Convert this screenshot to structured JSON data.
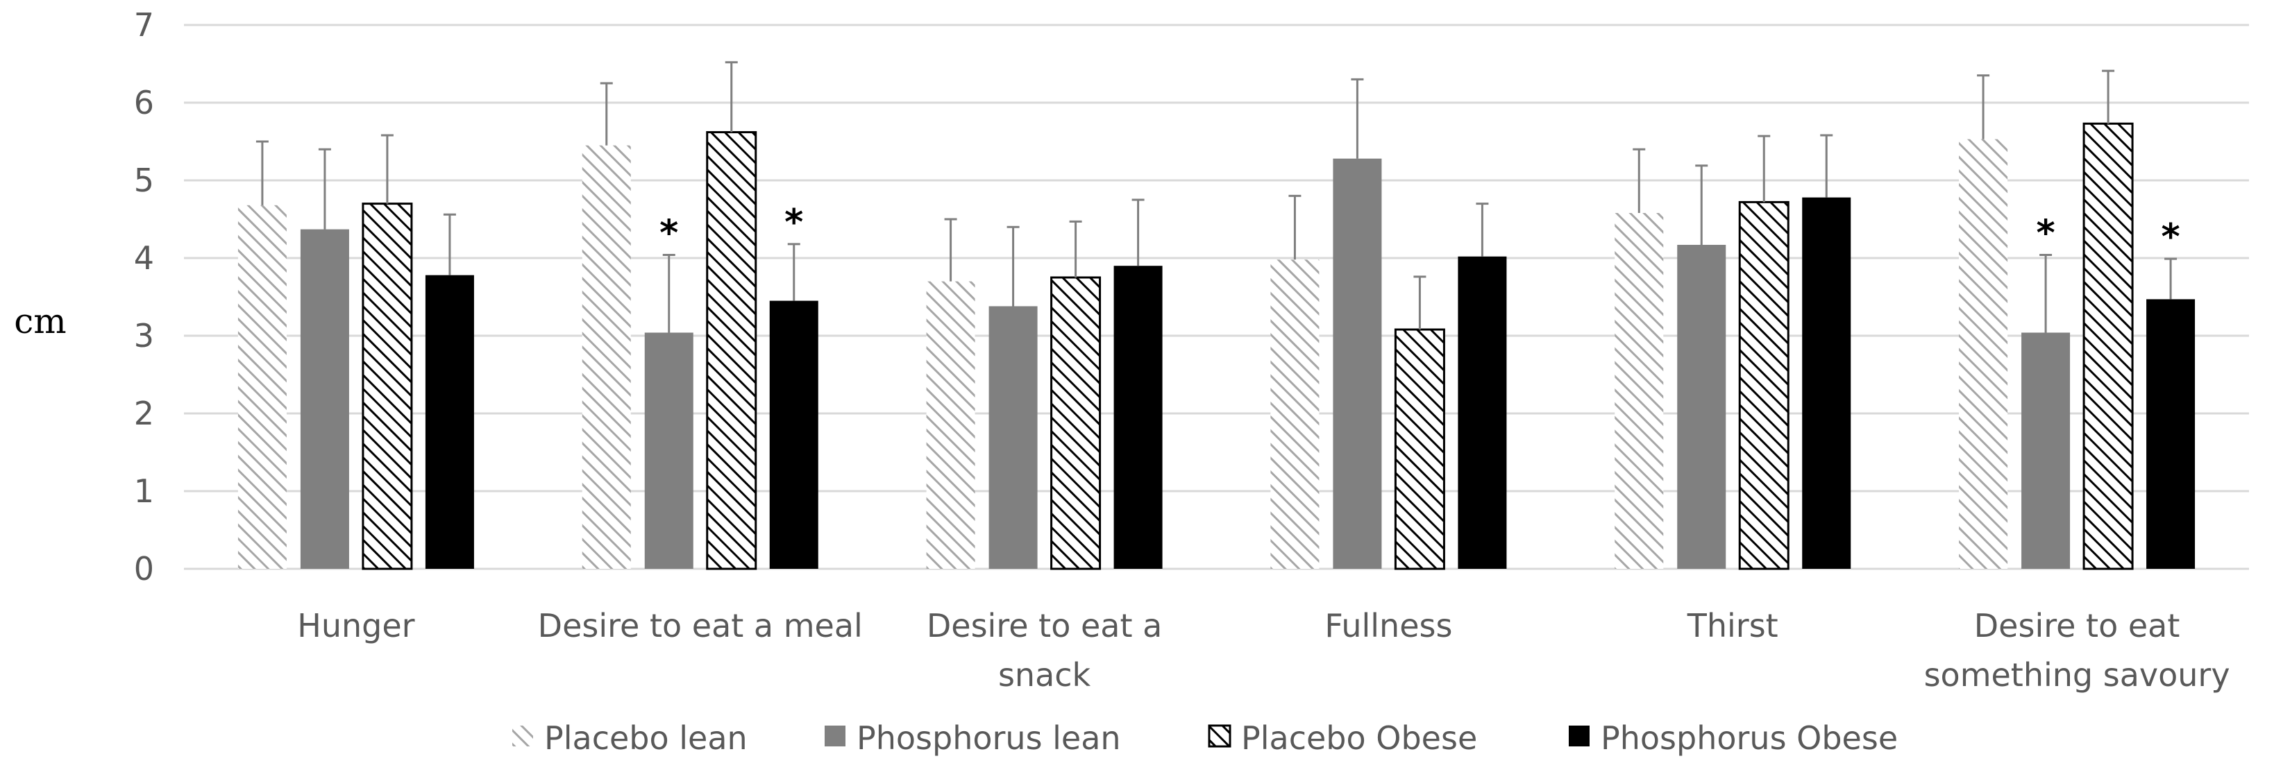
{
  "chart_data": {
    "type": "bar",
    "title": "",
    "xlabel": "",
    "ylabel": "cm",
    "ylim": [
      0,
      7
    ],
    "yticks": [
      0,
      1,
      2,
      3,
      4,
      5,
      6,
      7
    ],
    "grid": true,
    "legend_position": "bottom",
    "categories": [
      [
        "Hunger"
      ],
      [
        "Desire to eat a meal"
      ],
      [
        "Desire to eat a",
        "snack"
      ],
      [
        "Fullness"
      ],
      [
        "Thirst"
      ],
      [
        "Desire to eat",
        "something savoury"
      ]
    ],
    "series": [
      {
        "name": "Placebo lean",
        "style": "hatch-light",
        "values": [
          4.68,
          5.45,
          3.7,
          3.98,
          4.58,
          5.53
        ],
        "errors": [
          0.82,
          0.8,
          0.8,
          0.82,
          0.82,
          0.82
        ],
        "significant": [
          false,
          false,
          false,
          false,
          false,
          false
        ]
      },
      {
        "name": "Phosphorus lean",
        "style": "solid-gray",
        "values": [
          4.37,
          3.04,
          3.38,
          5.28,
          4.17,
          3.04
        ],
        "errors": [
          1.03,
          1.0,
          1.02,
          1.02,
          1.02,
          1.0
        ],
        "significant": [
          false,
          true,
          false,
          false,
          false,
          true
        ]
      },
      {
        "name": "Placebo Obese",
        "style": "hatch-dark",
        "values": [
          4.7,
          5.62,
          3.75,
          3.08,
          4.72,
          5.73
        ],
        "errors": [
          0.88,
          0.9,
          0.72,
          0.68,
          0.85,
          0.68
        ],
        "significant": [
          false,
          false,
          false,
          false,
          false,
          false
        ]
      },
      {
        "name": "Phosphorus Obese",
        "style": "solid-black",
        "values": [
          3.78,
          3.45,
          3.9,
          4.02,
          4.78,
          3.47
        ],
        "errors": [
          0.78,
          0.73,
          0.85,
          0.68,
          0.8,
          0.52
        ],
        "significant": [
          false,
          true,
          false,
          false,
          false,
          true
        ]
      }
    ],
    "significance_marker": "*"
  },
  "colors": {
    "gridline": "#d9d9d9",
    "axis_text": "#595959",
    "hatch_light": "#a6a6a6",
    "solid_gray": "#808080",
    "hatch_dark": "#000000",
    "solid_black": "#000000",
    "error_bar": "#7f7f7f"
  }
}
